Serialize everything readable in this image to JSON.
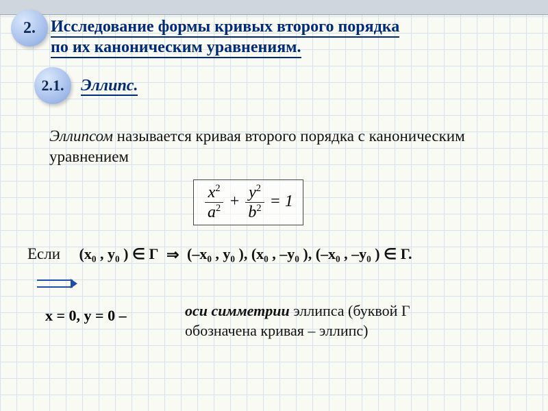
{
  "colors": {
    "grid": "#bcd4e6",
    "title": "#002a7a",
    "badge_bg_light": "#d9e8fb",
    "badge_bg_dark": "#7d9ad2",
    "text": "#111111",
    "arrow": "#1d4eae",
    "background": "#fafaf5",
    "topbar": "#cfd6dd"
  },
  "typography": {
    "family": "Times New Roman",
    "title_fontsize": 24,
    "body_fontsize": 23,
    "math_fontsize": 22
  },
  "badges": {
    "main": "2.",
    "sub": "2.1."
  },
  "title": {
    "line1": "Исследование формы кривых второго порядка",
    "line2": "по их каноническим уравнениям."
  },
  "subheading": " Эллипс.",
  "definition": {
    "emph": "Эллипсом",
    "rest": " называется кривая второго порядка с каноническим уравнением"
  },
  "formula": {
    "x_num_sym": "x",
    "x_den_sym": "a",
    "y_num_sym": "y",
    "y_den_sym": "b",
    "exp": "2",
    "plus": "+",
    "eq": "=",
    "rhs": "1"
  },
  "if_row": {
    "if_label": "Если",
    "lhs": "(x₀ , y₀ ) ∈ Γ",
    "arrow": "⇒",
    "rhs": "(–x₀ , y₀ ),  (x₀ , –y₀ ),  (–x₀ , –y₀ ) ∈ Γ."
  },
  "xy_line": "x = 0,     y = 0 –",
  "axes_note": {
    "emph": "оси симметрии",
    "rest1": " эллипса (буквой Γ",
    "rest2": "обозначена кривая – эллипс)"
  }
}
